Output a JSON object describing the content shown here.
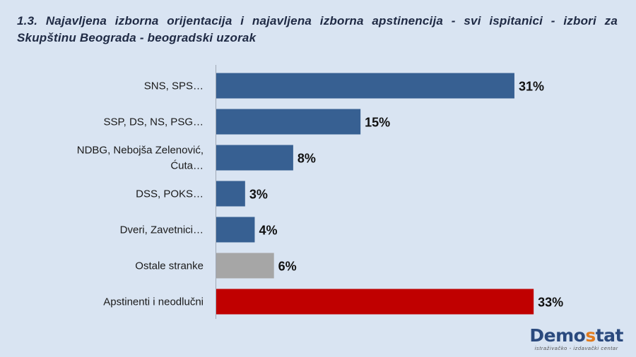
{
  "title": "1.3. Najavljena izborna orijentacija i najavljena izborna apstinencija - svi ispitanici - izbori za Skupštinu Beograda - beogradski uzorak",
  "chart_data": {
    "type": "bar",
    "orientation": "horizontal",
    "title": "1.3. Najavljena izborna orijentacija i najavljena izborna apstinencija - svi ispitanici - izbori za Skupštinu Beograda - beogradski uzorak",
    "categories": [
      [
        "SNS, SPS…"
      ],
      [
        "SSP, DS, NS, PSG…"
      ],
      [
        "NDBG, Nebojša Zelenović,",
        "Ćuta…"
      ],
      [
        "DSS, POKS…"
      ],
      [
        "Dveri, Zavetnici…"
      ],
      [
        "Ostale stranke"
      ],
      [
        "Apstinenti i neodlučni"
      ]
    ],
    "values": [
      31,
      15,
      8,
      3,
      4,
      6,
      33
    ],
    "value_labels": [
      "31%",
      "15%",
      "8%",
      "3%",
      "4%",
      "6%",
      "33%"
    ],
    "colors": [
      "#376092",
      "#376092",
      "#376092",
      "#376092",
      "#376092",
      "#a6a6a6",
      "#c00000"
    ],
    "unit": "%",
    "xlim": [
      0,
      36
    ],
    "grid": false,
    "legend": "none"
  },
  "logo": {
    "main_before": "Demo",
    "main_accent": "s",
    "main_after": "tat",
    "subtitle": "istraživačko - izdavački centar"
  }
}
